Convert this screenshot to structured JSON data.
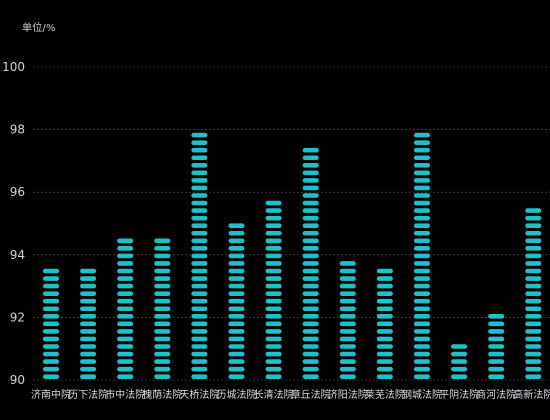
{
  "chart_data": {
    "type": "bar",
    "unit_label": "单位/%",
    "categories": [
      "济南中院",
      "历下法院",
      "市中法院",
      "槐荫法院",
      "天桥法院",
      "历城法院",
      "长清法院",
      "章丘法院",
      "济阳法院",
      "莱芜法院",
      "钢城法院",
      "平阴法院",
      "商河法院",
      "高新法院"
    ],
    "values": [
      93.6,
      93.6,
      94.5,
      94.5,
      97.9,
      95.0,
      95.9,
      97.6,
      93.9,
      93.6,
      97.9,
      91.3,
      92.2,
      95.6
    ],
    "ylim": [
      90,
      100
    ],
    "yticks": [
      90,
      92,
      94,
      96,
      98,
      100
    ],
    "grid": true,
    "bar_style": "segmented",
    "bar_color": "#1fc1c8"
  }
}
